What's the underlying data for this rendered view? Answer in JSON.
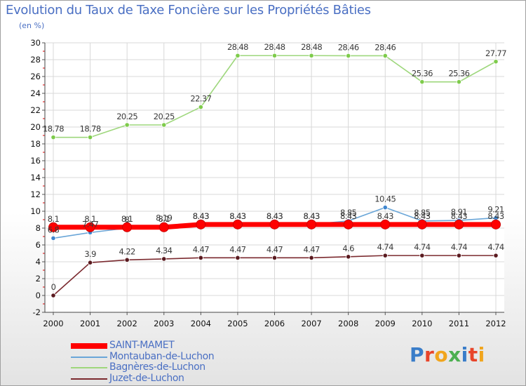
{
  "title": "Evolution du Taux de Taxe Foncière sur les Propriétés Bâties",
  "subtitle": "(en %)",
  "logo": {
    "text": "Proxiti",
    "letter_colors": [
      "#3a7dc9",
      "#e8442a",
      "#f1a51d",
      "#4caf50",
      "#3a7dc9",
      "#e8442a",
      "#f1a51d"
    ]
  },
  "chart_data": {
    "type": "line",
    "title": "Evolution du Taux de Taxe Foncière sur les Propriétés Bâties",
    "ylabel": "(en %)",
    "xlabel": "",
    "categories": [
      "2000",
      "2001",
      "2002",
      "2003",
      "2004",
      "2005",
      "2006",
      "2007",
      "2008",
      "2009",
      "2010",
      "2011",
      "2012"
    ],
    "ylim": [
      -2,
      30
    ],
    "yticks": [
      -2,
      0,
      2,
      4,
      6,
      8,
      10,
      12,
      14,
      16,
      18,
      20,
      22,
      24,
      26,
      28,
      30
    ],
    "grid": true,
    "legend_position": "bottom-left",
    "series": [
      {
        "name": "SAINT-MAMET",
        "color": "#ff0000",
        "marker": "#ff0000",
        "thick": true,
        "values": [
          8.1,
          8.1,
          8.1,
          8.1,
          8.43,
          8.43,
          8.43,
          8.43,
          8.43,
          8.43,
          8.43,
          8.43,
          8.43
        ],
        "labels": [
          "8.1",
          "8.1",
          "8.1",
          "8.1",
          "8.43",
          "8.43",
          "8.43",
          "8.43",
          "8.43",
          "8.43",
          "8.43",
          "8.43",
          "8.43"
        ]
      },
      {
        "name": "Montauban-de-Luchon",
        "color": "#6aa6d8",
        "marker": "#3f86cf",
        "values": [
          6.8,
          7.47,
          8.0,
          8.19,
          8.43,
          8.43,
          8.43,
          8.43,
          8.85,
          10.45,
          8.85,
          8.91,
          9.21
        ],
        "labels": [
          "6.8",
          "7.47",
          "8",
          "8.19",
          "8.43",
          "8.43",
          "8.43",
          "8.43",
          "8.85",
          "10.45",
          "8.85",
          "8.91",
          "9.21"
        ]
      },
      {
        "name": "Bagnères-de-Luchon",
        "color": "#9ed77c",
        "marker": "#7ecb4b",
        "values": [
          18.78,
          18.78,
          20.25,
          20.25,
          22.37,
          28.48,
          28.48,
          28.48,
          28.46,
          28.46,
          25.36,
          25.36,
          27.77
        ],
        "labels": [
          "18.78",
          "18.78",
          "20.25",
          "20.25",
          "22.37",
          "28.48",
          "28.48",
          "28.48",
          "28.46",
          "28.46",
          "25.36",
          "25.36",
          "27.77"
        ]
      },
      {
        "name": "Juzet-de-Luchon",
        "color": "#7b2a2f",
        "marker": "#5a1a1f",
        "values": [
          0,
          3.9,
          4.22,
          4.34,
          4.47,
          4.47,
          4.47,
          4.47,
          4.6,
          4.74,
          4.74,
          4.74,
          4.74
        ],
        "labels": [
          "0",
          "3.9",
          "4.22",
          "4.34",
          "4.47",
          "4.47",
          "4.47",
          "4.47",
          "4.6",
          "4.74",
          "4.74",
          "4.74",
          "4.74"
        ]
      }
    ]
  }
}
